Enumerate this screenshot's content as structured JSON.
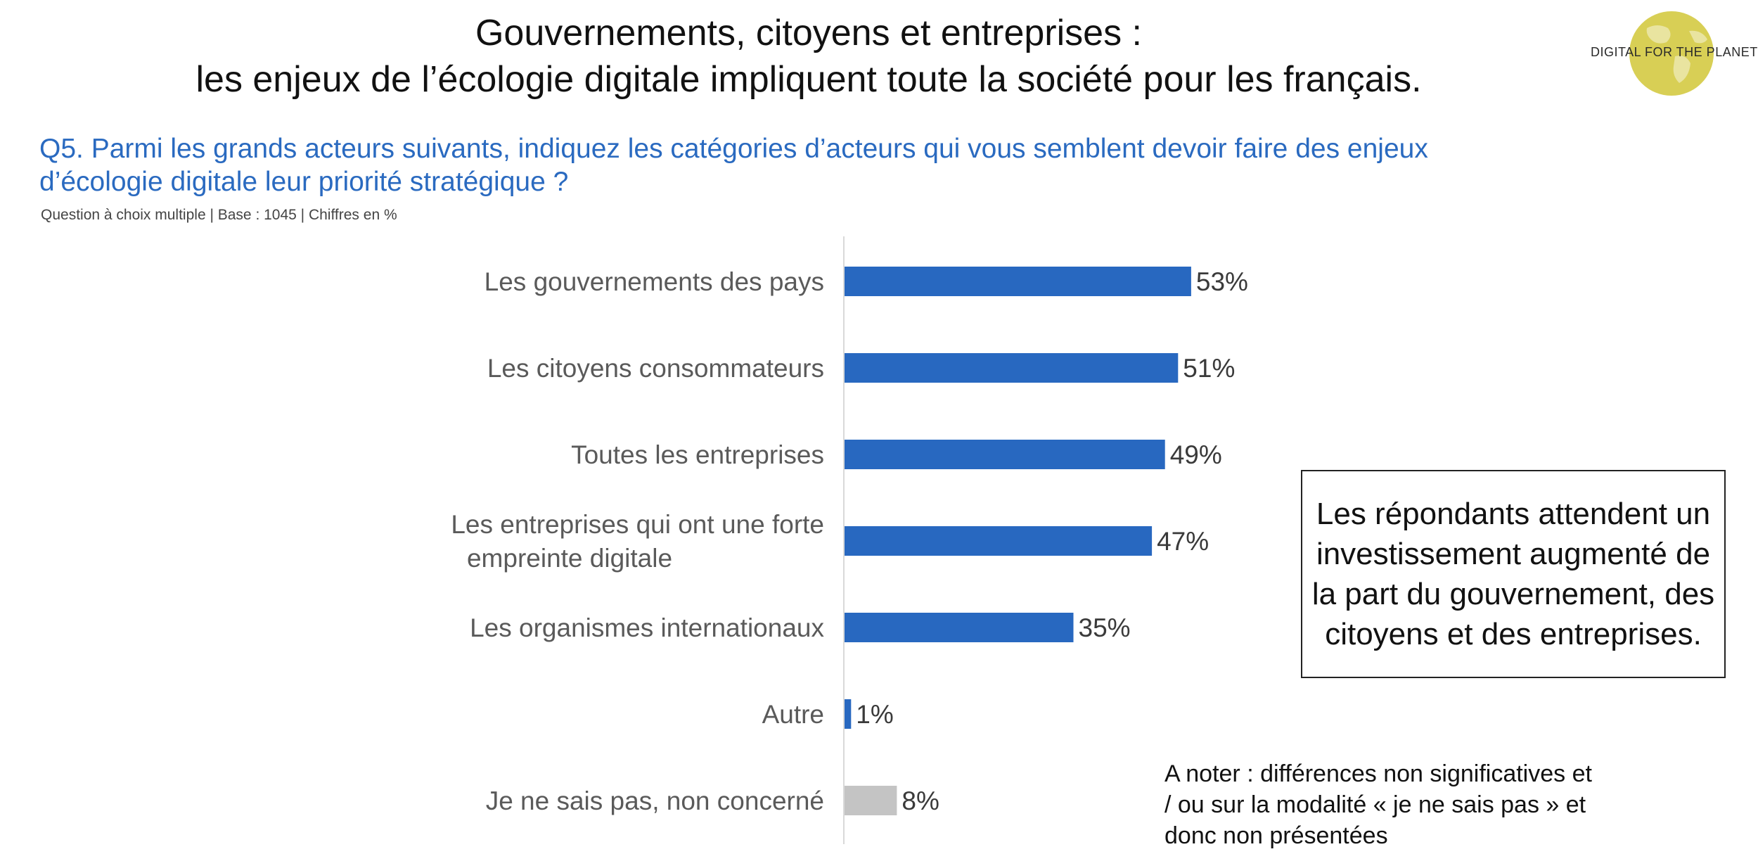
{
  "header": {
    "title_line1": "Gouvernements, citoyens et entreprises :",
    "title_line2": "les enjeux de l’écologie digitale impliquent toute la société pour les français."
  },
  "logo": {
    "text": "DIGITAL FOR THE PLANET",
    "icon": "globe-icon",
    "color": "#d8cf55"
  },
  "question": {
    "text": "Q5. Parmi les grands acteurs suivants, indiquez les catégories d’acteurs qui vous semblent devoir faire des enjeux d’écologie digitale leur priorité stratégique ?",
    "note": "Question à choix multiple | Base : 1045 | Chiffres en %"
  },
  "chart_data": {
    "type": "bar",
    "orientation": "horizontal",
    "categories": [
      "Les gouvernements des pays",
      "Les citoyens consommateurs",
      "Toutes les entreprises",
      "Les entreprises qui ont une forte empreinte digitale",
      "Les organismes internationaux",
      "Autre",
      "Je ne sais pas, non concerné"
    ],
    "values": [
      53,
      51,
      49,
      47,
      35,
      1,
      8
    ],
    "value_labels": [
      "53%",
      "51%",
      "49%",
      "47%",
      "35%",
      "1%",
      "8%"
    ],
    "bar_colors": [
      "#2868c0",
      "#2868c0",
      "#2868c0",
      "#2868c0",
      "#2868c0",
      "#2868c0",
      "#c4c4c4"
    ],
    "xlim": [
      0,
      100
    ],
    "grid": false,
    "legend": "none"
  },
  "callout": {
    "text": "Les répondants attendent un investissement augmenté de la part du gouvernement, des citoyens et des entreprises."
  },
  "footnote": {
    "text": "A noter : différences non significatives et / ou sur la modalité « je ne sais pas » et donc non présentées"
  }
}
